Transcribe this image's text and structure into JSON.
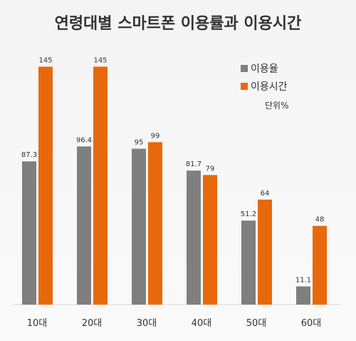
{
  "chart_data": {
    "type": "bar",
    "title": "연령대별 스마트폰 이용률과 이용시간",
    "unit_note": "단위%",
    "categories": [
      "10대",
      "20대",
      "30대",
      "40대",
      "50대",
      "60대"
    ],
    "series": [
      {
        "name": "이용율",
        "color": "#7f7f7f",
        "values": [
          87.3,
          96.4,
          95,
          81.7,
          51.2,
          11.1
        ]
      },
      {
        "name": "이용시간",
        "color": "#e8690b",
        "values": [
          145,
          145,
          99,
          79,
          64,
          48
        ]
      }
    ],
    "value_labels": [
      [
        "87.3",
        "96.4",
        "95",
        "81.7",
        "51.2",
        "11.1"
      ],
      [
        "145",
        "145",
        "99",
        "79",
        "64",
        "48"
      ]
    ],
    "ylim": [
      0,
      160
    ],
    "legend_position": "top-right",
    "grid": false
  }
}
